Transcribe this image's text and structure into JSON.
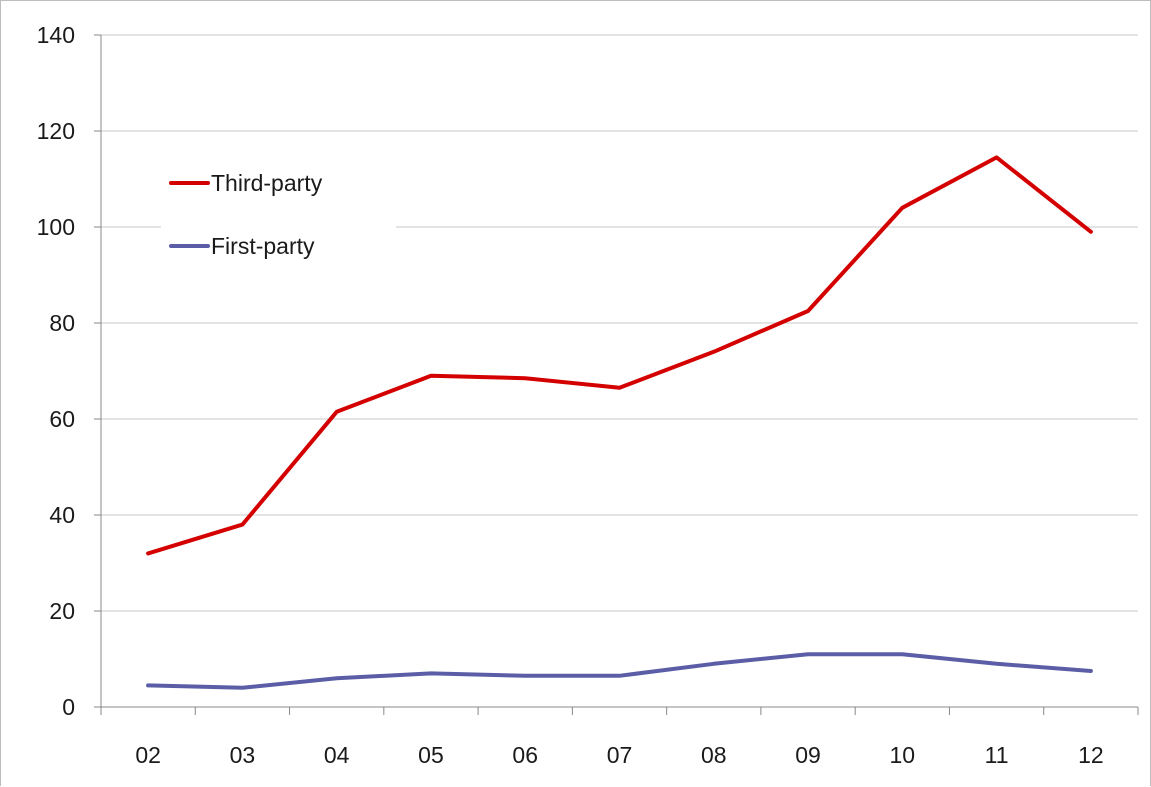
{
  "chart_data": {
    "type": "line",
    "categories": [
      "02",
      "03",
      "04",
      "05",
      "06",
      "07",
      "08",
      "09",
      "10",
      "11",
      "12"
    ],
    "series": [
      {
        "name": "Third-party",
        "color": "#d40000",
        "values": [
          32,
          38,
          61.5,
          69,
          68.5,
          66.5,
          74,
          82.5,
          104,
          114.5,
          99
        ]
      },
      {
        "name": "First-party",
        "color": "#5b5ea6",
        "values": [
          4.5,
          4,
          6,
          7,
          6.5,
          6.5,
          9,
          11,
          11,
          9,
          7.5
        ]
      }
    ],
    "ylim": [
      0,
      140
    ],
    "yticks": [
      "0",
      "20",
      "40",
      "60",
      "80",
      "100",
      "120",
      "140"
    ],
    "grid": true,
    "legend_position": "top-left",
    "title": "",
    "xlabel": "",
    "ylabel": ""
  }
}
